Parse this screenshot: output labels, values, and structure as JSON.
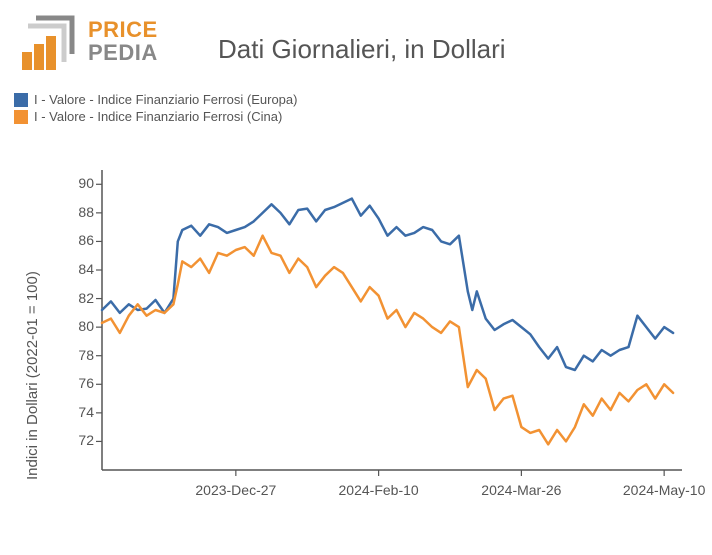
{
  "title": "Dati Giornalieri, in Dollari",
  "logo": {
    "line1": "PRICE",
    "line2": "PEDIA",
    "accent": "#e8912b",
    "muted": "#888888"
  },
  "legend": [
    {
      "label": "I - Valore - Indice Finanziario Ferrosi (Europa)",
      "color": "#3b6ca8"
    },
    {
      "label": "I - Valore - Indice Finanziario Ferrosi (Cina)",
      "color": "#f29233"
    }
  ],
  "chart": {
    "type": "line",
    "background_color": "#ffffff",
    "axis_color": "#555555",
    "text_color": "#555555",
    "label_fontsize": 14,
    "axis_title_fontsize": 15,
    "y_axis_label": "Indici in Dollari (2022-01 = 100)",
    "ylim": [
      70,
      91
    ],
    "yticks": [
      72,
      74,
      76,
      78,
      80,
      82,
      84,
      86,
      88,
      90
    ],
    "xrange": [
      0,
      130
    ],
    "xticks": [
      {
        "pos": 30,
        "label": "2023-Dec-27"
      },
      {
        "pos": 62,
        "label": "2024-Feb-10"
      },
      {
        "pos": 94,
        "label": "2024-Mar-26"
      },
      {
        "pos": 126,
        "label": "2024-May-10"
      }
    ],
    "line_width": 2.5,
    "series": [
      {
        "name": "europa",
        "color": "#3b6ca8",
        "data": [
          [
            0,
            81.2
          ],
          [
            2,
            81.8
          ],
          [
            4,
            81.0
          ],
          [
            6,
            81.6
          ],
          [
            8,
            81.2
          ],
          [
            10,
            81.3
          ],
          [
            12,
            81.9
          ],
          [
            14,
            81.0
          ],
          [
            16,
            82.0
          ],
          [
            17,
            86.0
          ],
          [
            18,
            86.8
          ],
          [
            20,
            87.1
          ],
          [
            22,
            86.4
          ],
          [
            24,
            87.2
          ],
          [
            26,
            87.0
          ],
          [
            28,
            86.6
          ],
          [
            30,
            86.8
          ],
          [
            32,
            87.0
          ],
          [
            34,
            87.4
          ],
          [
            36,
            88.0
          ],
          [
            38,
            88.6
          ],
          [
            40,
            88.0
          ],
          [
            42,
            87.2
          ],
          [
            44,
            88.2
          ],
          [
            46,
            88.3
          ],
          [
            48,
            87.4
          ],
          [
            50,
            88.2
          ],
          [
            52,
            88.4
          ],
          [
            54,
            88.7
          ],
          [
            56,
            89.0
          ],
          [
            58,
            87.8
          ],
          [
            60,
            88.5
          ],
          [
            62,
            87.6
          ],
          [
            64,
            86.4
          ],
          [
            66,
            87.0
          ],
          [
            68,
            86.4
          ],
          [
            70,
            86.6
          ],
          [
            72,
            87.0
          ],
          [
            74,
            86.8
          ],
          [
            76,
            86.0
          ],
          [
            78,
            85.8
          ],
          [
            80,
            86.4
          ],
          [
            82,
            82.5
          ],
          [
            83,
            81.2
          ],
          [
            84,
            82.5
          ],
          [
            86,
            80.6
          ],
          [
            88,
            79.8
          ],
          [
            90,
            80.2
          ],
          [
            92,
            80.5
          ],
          [
            94,
            80.0
          ],
          [
            96,
            79.5
          ],
          [
            98,
            78.6
          ],
          [
            100,
            77.8
          ],
          [
            102,
            78.6
          ],
          [
            104,
            77.2
          ],
          [
            106,
            77.0
          ],
          [
            108,
            78.0
          ],
          [
            110,
            77.6
          ],
          [
            112,
            78.4
          ],
          [
            114,
            78.0
          ],
          [
            116,
            78.4
          ],
          [
            118,
            78.6
          ],
          [
            120,
            80.8
          ],
          [
            122,
            80.0
          ],
          [
            124,
            79.2
          ],
          [
            126,
            80.0
          ],
          [
            128,
            79.6
          ]
        ]
      },
      {
        "name": "cina",
        "color": "#f29233",
        "data": [
          [
            0,
            80.3
          ],
          [
            2,
            80.6
          ],
          [
            4,
            79.6
          ],
          [
            6,
            80.8
          ],
          [
            8,
            81.6
          ],
          [
            10,
            80.8
          ],
          [
            12,
            81.2
          ],
          [
            14,
            81.0
          ],
          [
            16,
            81.6
          ],
          [
            17,
            83.0
          ],
          [
            18,
            84.6
          ],
          [
            20,
            84.2
          ],
          [
            22,
            84.8
          ],
          [
            24,
            83.8
          ],
          [
            26,
            85.2
          ],
          [
            28,
            85.0
          ],
          [
            30,
            85.4
          ],
          [
            32,
            85.6
          ],
          [
            34,
            85.0
          ],
          [
            36,
            86.4
          ],
          [
            38,
            85.2
          ],
          [
            40,
            85.0
          ],
          [
            42,
            83.8
          ],
          [
            44,
            84.8
          ],
          [
            46,
            84.2
          ],
          [
            48,
            82.8
          ],
          [
            50,
            83.6
          ],
          [
            52,
            84.2
          ],
          [
            54,
            83.8
          ],
          [
            56,
            82.8
          ],
          [
            58,
            81.8
          ],
          [
            60,
            82.8
          ],
          [
            62,
            82.2
          ],
          [
            64,
            80.6
          ],
          [
            66,
            81.2
          ],
          [
            68,
            80.0
          ],
          [
            70,
            81.0
          ],
          [
            72,
            80.6
          ],
          [
            74,
            80.0
          ],
          [
            76,
            79.6
          ],
          [
            78,
            80.4
          ],
          [
            80,
            80.0
          ],
          [
            82,
            75.8
          ],
          [
            84,
            77.0
          ],
          [
            86,
            76.4
          ],
          [
            88,
            74.2
          ],
          [
            90,
            75.0
          ],
          [
            92,
            75.2
          ],
          [
            94,
            73.0
          ],
          [
            96,
            72.6
          ],
          [
            98,
            72.8
          ],
          [
            100,
            71.8
          ],
          [
            102,
            72.8
          ],
          [
            104,
            72.0
          ],
          [
            106,
            73.0
          ],
          [
            108,
            74.6
          ],
          [
            110,
            73.8
          ],
          [
            112,
            75.0
          ],
          [
            114,
            74.2
          ],
          [
            116,
            75.4
          ],
          [
            118,
            74.8
          ],
          [
            120,
            75.6
          ],
          [
            122,
            76.0
          ],
          [
            124,
            75.0
          ],
          [
            126,
            76.0
          ],
          [
            128,
            75.4
          ]
        ]
      }
    ]
  }
}
